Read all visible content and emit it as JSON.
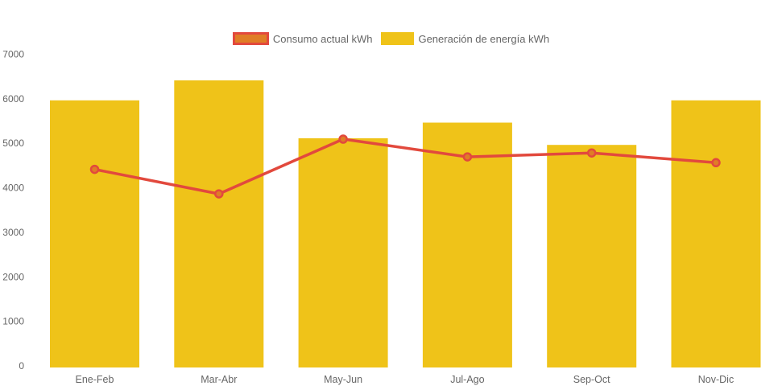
{
  "chart_data": {
    "type": "bar",
    "combo": "bar-with-line-overlay",
    "categories": [
      "Ene-Feb",
      "Mar-Abr",
      "May-Jun",
      "Jul-Ago",
      "Sep-Oct",
      "Nov-Dic"
    ],
    "series": [
      {
        "name": "Consumo actual kWh",
        "type": "line",
        "color": "#E2493D",
        "marker_fill": "#E07D26",
        "values": [
          4450,
          3900,
          5130,
          4730,
          4820,
          4600
        ]
      },
      {
        "name": "Generación de energía kWh",
        "type": "bar",
        "color": "#EFC319",
        "values": [
          6000,
          6450,
          5150,
          5500,
          5000,
          6000
        ]
      }
    ],
    "ylim": [
      0,
      7000
    ],
    "yticks": [
      "7000",
      "6000",
      "5000",
      "4000",
      "3000",
      "2000",
      "1000",
      "0"
    ],
    "xlabel": "",
    "ylabel": "",
    "grid": false,
    "legend_position": "top-center",
    "background": "#FFFFFF",
    "text_color": "#666666"
  }
}
